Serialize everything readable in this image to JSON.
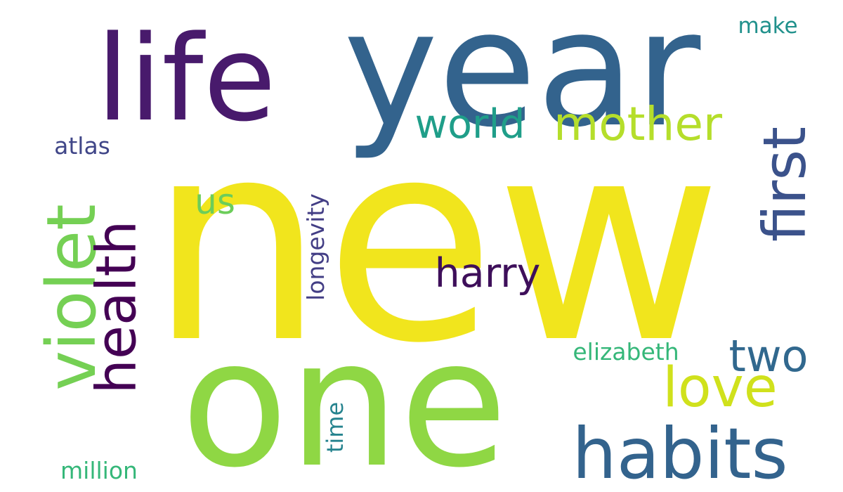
{
  "word_cloud": {
    "words": [
      {
        "text": "new",
        "color": "#f1e51d",
        "rotate": 0,
        "weight": 1.0
      },
      {
        "text": "year",
        "color": "#33638d",
        "rotate": 0,
        "weight": 0.78
      },
      {
        "text": "life",
        "color": "#481a6c",
        "rotate": 0,
        "weight": 0.6
      },
      {
        "text": "one",
        "color": "#8fd744",
        "rotate": 0,
        "weight": 0.84
      },
      {
        "text": "habits",
        "color": "#33638d",
        "rotate": 0,
        "weight": 0.38
      },
      {
        "text": "violet",
        "color": "#75d054",
        "rotate": -90,
        "weight": 0.37
      },
      {
        "text": "first",
        "color": "#3b528b",
        "rotate": -90,
        "weight": 0.33
      },
      {
        "text": "love",
        "color": "#d0e11c",
        "rotate": 0,
        "weight": 0.3
      },
      {
        "text": "health",
        "color": "#440154",
        "rotate": -90,
        "weight": 0.3
      },
      {
        "text": "mother",
        "color": "#b5de2b",
        "rotate": 0,
        "weight": 0.25
      },
      {
        "text": "two",
        "color": "#31688e",
        "rotate": 0,
        "weight": 0.24
      },
      {
        "text": "world",
        "color": "#1f9e89",
        "rotate": 0,
        "weight": 0.23
      },
      {
        "text": "harry",
        "color": "#3e0f5a",
        "rotate": 0,
        "weight": 0.23
      },
      {
        "text": "us",
        "color": "#6ccd5a",
        "rotate": 0,
        "weight": 0.2
      },
      {
        "text": "longevity",
        "color": "#433e85",
        "rotate": -90,
        "weight": 0.13
      },
      {
        "text": "elizabeth",
        "color": "#35b779",
        "rotate": 0,
        "weight": 0.13
      },
      {
        "text": "atlas",
        "color": "#404688",
        "rotate": 0,
        "weight": 0.13
      },
      {
        "text": "million",
        "color": "#35b779",
        "rotate": 0,
        "weight": 0.13
      },
      {
        "text": "time",
        "color": "#25838e",
        "rotate": -90,
        "weight": 0.12
      },
      {
        "text": "make",
        "color": "#21918c",
        "rotate": 0,
        "weight": 0.12
      }
    ]
  }
}
